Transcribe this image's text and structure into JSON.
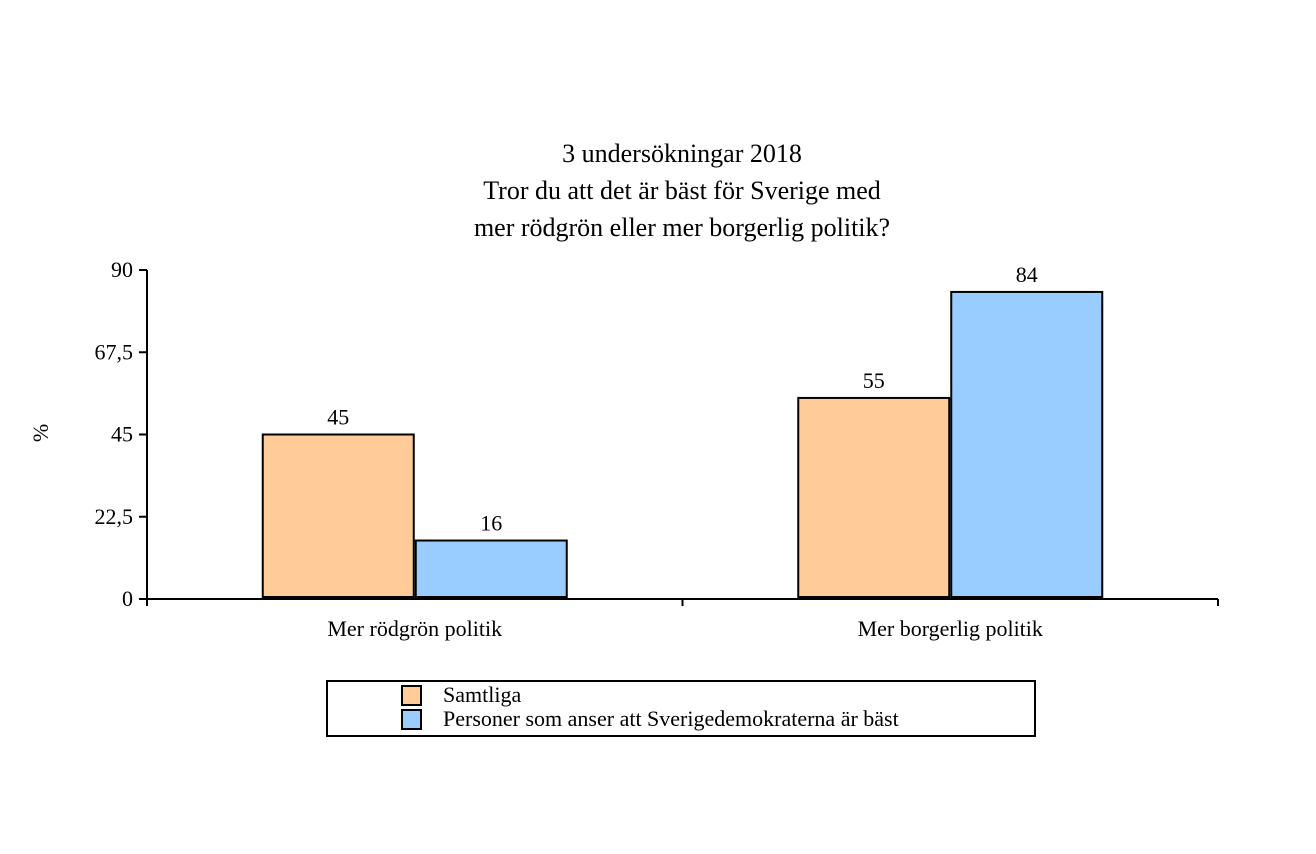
{
  "chart_data": {
    "type": "bar",
    "title_lines": [
      "3 undersökningar 2018",
      "Tror du att det är bäst för Sverige med",
      "mer rödgrön eller mer borgerlig politik?"
    ],
    "ylabel": "%",
    "xlabel": "",
    "ylim": [
      0,
      90
    ],
    "yticks": [
      0,
      22.5,
      45,
      67.5,
      90
    ],
    "ytick_labels": [
      "0",
      "22,5",
      "45",
      "67,5",
      "90"
    ],
    "categories": [
      "Mer rödgrön politik",
      "Mer borgerlig politik"
    ],
    "series": [
      {
        "name": "Samtliga",
        "values": [
          45,
          55
        ],
        "color": "#FFCC99"
      },
      {
        "name": "Personer som anser att Sverigedemokraterna är bäst",
        "values": [
          16,
          84
        ],
        "color": "#99CCFF"
      }
    ],
    "data_labels": [
      [
        "45",
        "55"
      ],
      [
        "16",
        "84"
      ]
    ],
    "grid": false,
    "legend_position": "bottom"
  }
}
